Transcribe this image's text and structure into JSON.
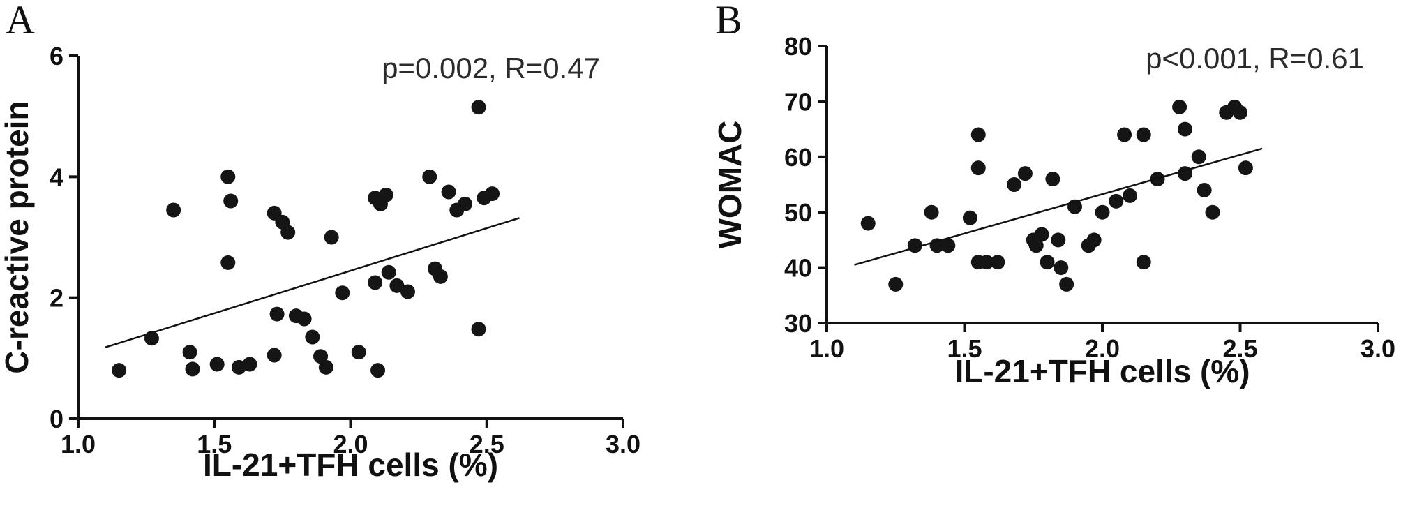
{
  "figure": {
    "background": "#ffffff",
    "axis_color": "#111111",
    "marker_color": "#151515",
    "annotation_color": "#2b2b2b"
  },
  "chart_data": [
    {
      "type": "scatter",
      "panel_label": "A",
      "annotation": "p=0.002, R=0.47",
      "xlabel": "IL-21+TFH cells (%)",
      "ylabel": "C-reactive protein",
      "xlim": [
        1.0,
        3.0
      ],
      "ylim": [
        0,
        6
      ],
      "xticks": [
        1.0,
        1.5,
        2.0,
        2.5,
        3.0
      ],
      "xtick_labels": [
        "1.0",
        "1.5",
        "2.0",
        "2.5",
        "3.0"
      ],
      "yticks": [
        0,
        2,
        4,
        6
      ],
      "ytick_labels": [
        "0",
        "2",
        "4",
        "6"
      ],
      "points": [
        [
          1.15,
          0.8
        ],
        [
          1.27,
          1.33
        ],
        [
          1.35,
          3.45
        ],
        [
          1.41,
          1.1
        ],
        [
          1.42,
          0.82
        ],
        [
          1.51,
          0.9
        ],
        [
          1.55,
          4.0
        ],
        [
          1.56,
          3.6
        ],
        [
          1.55,
          2.58
        ],
        [
          1.59,
          0.85
        ],
        [
          1.63,
          0.9
        ],
        [
          1.72,
          3.4
        ],
        [
          1.75,
          3.25
        ],
        [
          1.77,
          3.08
        ],
        [
          1.73,
          1.73
        ],
        [
          1.72,
          1.05
        ],
        [
          1.8,
          1.7
        ],
        [
          1.83,
          1.65
        ],
        [
          1.86,
          1.35
        ],
        [
          1.89,
          1.03
        ],
        [
          1.91,
          0.85
        ],
        [
          1.93,
          3.0
        ],
        [
          1.97,
          2.08
        ],
        [
          2.03,
          1.1
        ],
        [
          2.09,
          3.65
        ],
        [
          2.11,
          3.55
        ],
        [
          2.13,
          3.7
        ],
        [
          2.09,
          2.25
        ],
        [
          2.14,
          2.42
        ],
        [
          2.17,
          2.2
        ],
        [
          2.21,
          2.1
        ],
        [
          2.1,
          0.8
        ],
        [
          2.29,
          4.0
        ],
        [
          2.31,
          2.48
        ],
        [
          2.33,
          2.35
        ],
        [
          2.36,
          3.75
        ],
        [
          2.39,
          3.45
        ],
        [
          2.42,
          3.55
        ],
        [
          2.47,
          5.15
        ],
        [
          2.49,
          3.65
        ],
        [
          2.52,
          3.72
        ],
        [
          2.47,
          1.48
        ]
      ],
      "trend_line": {
        "x": [
          1.1,
          2.62
        ],
        "y": [
          1.18,
          3.32
        ]
      }
    },
    {
      "type": "scatter",
      "panel_label": "B",
      "annotation": "p<0.001, R=0.61",
      "xlabel": "IL-21+TFH cells (%)",
      "ylabel": "WOMAC",
      "xlim": [
        1.0,
        3.0
      ],
      "ylim": [
        30,
        80
      ],
      "xticks": [
        1.0,
        1.5,
        2.0,
        2.5,
        3.0
      ],
      "xtick_labels": [
        "1.0",
        "1.5",
        "2.0",
        "2.5",
        "3.0"
      ],
      "yticks": [
        30,
        40,
        50,
        60,
        70,
        80
      ],
      "ytick_labels": [
        "30",
        "40",
        "50",
        "60",
        "70",
        "80"
      ],
      "points": [
        [
          1.15,
          48
        ],
        [
          1.25,
          37
        ],
        [
          1.32,
          44
        ],
        [
          1.38,
          50
        ],
        [
          1.4,
          44
        ],
        [
          1.44,
          44
        ],
        [
          1.52,
          49
        ],
        [
          1.55,
          64
        ],
        [
          1.55,
          58
        ],
        [
          1.55,
          41
        ],
        [
          1.58,
          41
        ],
        [
          1.62,
          41
        ],
        [
          1.68,
          55
        ],
        [
          1.72,
          57
        ],
        [
          1.75,
          45
        ],
        [
          1.76,
          44
        ],
        [
          1.78,
          46
        ],
        [
          1.8,
          41
        ],
        [
          1.82,
          56
        ],
        [
          1.84,
          45
        ],
        [
          1.85,
          40
        ],
        [
          1.87,
          37
        ],
        [
          1.9,
          51
        ],
        [
          1.95,
          44
        ],
        [
          1.97,
          45
        ],
        [
          2.0,
          50
        ],
        [
          2.05,
          52
        ],
        [
          2.08,
          64
        ],
        [
          2.1,
          53
        ],
        [
          2.15,
          64
        ],
        [
          2.15,
          41
        ],
        [
          2.2,
          56
        ],
        [
          2.28,
          69
        ],
        [
          2.3,
          65
        ],
        [
          2.3,
          57
        ],
        [
          2.35,
          60
        ],
        [
          2.37,
          54
        ],
        [
          2.4,
          50
        ],
        [
          2.45,
          68
        ],
        [
          2.48,
          69
        ],
        [
          2.5,
          68
        ],
        [
          2.52,
          58
        ]
      ],
      "trend_line": {
        "x": [
          1.1,
          2.58
        ],
        "y": [
          40.5,
          61.5
        ]
      }
    }
  ]
}
